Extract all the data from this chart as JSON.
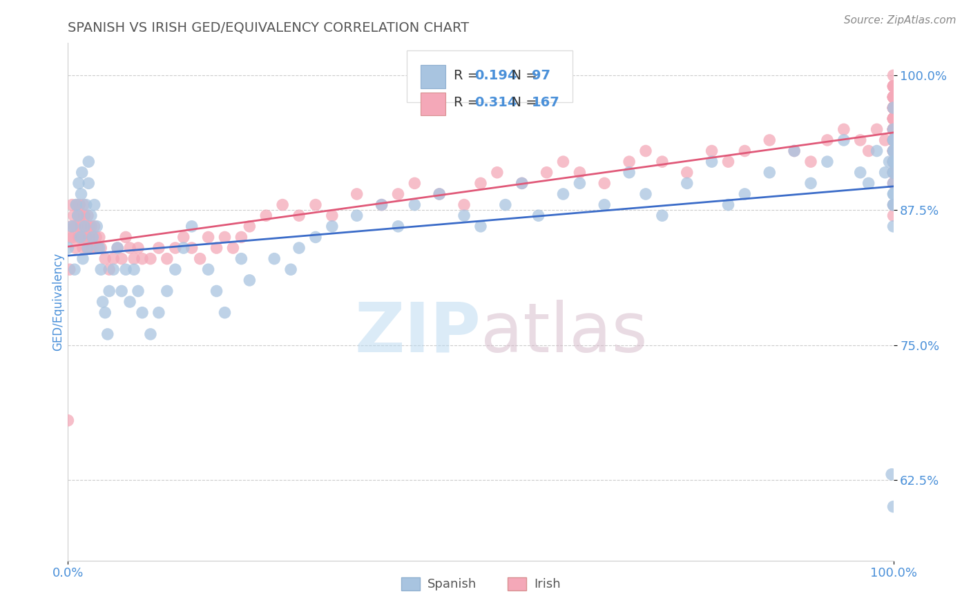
{
  "title": "SPANISH VS IRISH GED/EQUIVALENCY CORRELATION CHART",
  "source": "Source: ZipAtlas.com",
  "ylabel": "GED/Equivalency",
  "xlim": [
    0.0,
    1.0
  ],
  "ylim": [
    0.55,
    1.03
  ],
  "yticks": [
    0.625,
    0.75,
    0.875,
    1.0
  ],
  "ytick_labels": [
    "62.5%",
    "75.0%",
    "87.5%",
    "100.0%"
  ],
  "xtick_labels": [
    "0.0%",
    "100.0%"
  ],
  "spanish_R": 0.194,
  "spanish_N": 97,
  "irish_R": 0.314,
  "irish_N": 167,
  "spanish_color": "#a8c4e0",
  "irish_color": "#f4a8b8",
  "spanish_line_color": "#3a6bc8",
  "irish_line_color": "#e05878",
  "legend_label_spanish": "Spanish",
  "legend_label_irish": "Irish",
  "title_color": "#555555",
  "axis_label_color": "#4a90d9",
  "watermark_zip": "ZIP",
  "watermark_atlas": "atlas",
  "background_color": "#ffffff",
  "grid_color": "#cccccc",
  "spanish_x": [
    0.0,
    0.005,
    0.008,
    0.01,
    0.012,
    0.013,
    0.015,
    0.016,
    0.017,
    0.018,
    0.02,
    0.022,
    0.024,
    0.025,
    0.025,
    0.028,
    0.03,
    0.032,
    0.035,
    0.038,
    0.04,
    0.042,
    0.045,
    0.048,
    0.05,
    0.055,
    0.06,
    0.065,
    0.07,
    0.075,
    0.08,
    0.085,
    0.09,
    0.1,
    0.11,
    0.12,
    0.13,
    0.14,
    0.15,
    0.17,
    0.18,
    0.19,
    0.21,
    0.22,
    0.25,
    0.27,
    0.28,
    0.3,
    0.32,
    0.35,
    0.38,
    0.4,
    0.42,
    0.45,
    0.48,
    0.5,
    0.53,
    0.55,
    0.57,
    0.6,
    0.62,
    0.65,
    0.68,
    0.7,
    0.72,
    0.75,
    0.78,
    0.8,
    0.82,
    0.85,
    0.88,
    0.9,
    0.92,
    0.94,
    0.96,
    0.97,
    0.98,
    0.99,
    0.995,
    0.998,
    1.0,
    1.0,
    1.0,
    1.0,
    1.0,
    1.0,
    1.0,
    1.0,
    1.0,
    1.0,
    1.0,
    1.0,
    1.0,
    1.0,
    1.0,
    1.0,
    1.0
  ],
  "spanish_y": [
    0.84,
    0.86,
    0.82,
    0.88,
    0.87,
    0.9,
    0.85,
    0.89,
    0.91,
    0.83,
    0.86,
    0.88,
    0.84,
    0.9,
    0.92,
    0.87,
    0.85,
    0.88,
    0.86,
    0.84,
    0.82,
    0.79,
    0.78,
    0.76,
    0.8,
    0.82,
    0.84,
    0.8,
    0.82,
    0.79,
    0.82,
    0.8,
    0.78,
    0.76,
    0.78,
    0.8,
    0.82,
    0.84,
    0.86,
    0.82,
    0.8,
    0.78,
    0.83,
    0.81,
    0.83,
    0.82,
    0.84,
    0.85,
    0.86,
    0.87,
    0.88,
    0.86,
    0.88,
    0.89,
    0.87,
    0.86,
    0.88,
    0.9,
    0.87,
    0.89,
    0.9,
    0.88,
    0.91,
    0.89,
    0.87,
    0.9,
    0.92,
    0.88,
    0.89,
    0.91,
    0.93,
    0.9,
    0.92,
    0.94,
    0.91,
    0.9,
    0.93,
    0.91,
    0.92,
    0.63,
    0.92,
    0.88,
    0.9,
    0.86,
    0.94,
    0.91,
    0.93,
    0.89,
    0.95,
    0.92,
    0.94,
    0.88,
    0.97,
    0.91,
    0.89,
    0.93,
    0.6
  ],
  "irish_x": [
    0.0,
    0.002,
    0.003,
    0.004,
    0.005,
    0.006,
    0.007,
    0.008,
    0.009,
    0.01,
    0.011,
    0.012,
    0.013,
    0.014,
    0.015,
    0.016,
    0.017,
    0.018,
    0.019,
    0.02,
    0.021,
    0.022,
    0.023,
    0.024,
    0.025,
    0.026,
    0.027,
    0.028,
    0.029,
    0.03,
    0.032,
    0.034,
    0.036,
    0.038,
    0.04,
    0.045,
    0.05,
    0.055,
    0.06,
    0.065,
    0.07,
    0.075,
    0.08,
    0.085,
    0.09,
    0.1,
    0.11,
    0.12,
    0.13,
    0.14,
    0.15,
    0.16,
    0.17,
    0.18,
    0.19,
    0.2,
    0.21,
    0.22,
    0.24,
    0.26,
    0.28,
    0.3,
    0.32,
    0.35,
    0.38,
    0.4,
    0.42,
    0.45,
    0.48,
    0.5,
    0.52,
    0.55,
    0.58,
    0.6,
    0.62,
    0.65,
    0.68,
    0.7,
    0.72,
    0.75,
    0.78,
    0.8,
    0.82,
    0.85,
    0.88,
    0.9,
    0.92,
    0.94,
    0.96,
    0.97,
    0.98,
    0.99,
    1.0,
    1.0,
    1.0,
    1.0,
    1.0,
    1.0,
    1.0,
    1.0,
    1.0,
    1.0,
    1.0,
    1.0,
    1.0,
    1.0,
    1.0,
    1.0,
    1.0,
    1.0,
    1.0,
    1.0,
    1.0,
    1.0,
    1.0,
    1.0,
    1.0,
    1.0,
    1.0,
    1.0,
    1.0,
    1.0,
    1.0,
    1.0,
    1.0,
    1.0,
    1.0,
    1.0,
    1.0,
    1.0,
    1.0,
    1.0,
    1.0,
    1.0,
    1.0,
    1.0,
    1.0,
    1.0,
    1.0,
    1.0,
    1.0,
    1.0,
    1.0,
    1.0,
    1.0,
    1.0,
    1.0,
    1.0,
    1.0,
    1.0,
    1.0,
    1.0,
    1.0,
    1.0,
    1.0,
    1.0,
    1.0,
    1.0,
    1.0,
    1.0,
    1.0,
    1.0,
    1.0,
    1.0,
    1.0,
    1.0,
    1.0
  ],
  "irish_y": [
    0.68,
    0.82,
    0.85,
    0.86,
    0.88,
    0.85,
    0.87,
    0.86,
    0.84,
    0.88,
    0.86,
    0.87,
    0.85,
    0.88,
    0.87,
    0.86,
    0.85,
    0.84,
    0.88,
    0.87,
    0.86,
    0.85,
    0.84,
    0.87,
    0.86,
    0.85,
    0.84,
    0.86,
    0.85,
    0.84,
    0.86,
    0.85,
    0.84,
    0.85,
    0.84,
    0.83,
    0.82,
    0.83,
    0.84,
    0.83,
    0.85,
    0.84,
    0.83,
    0.84,
    0.83,
    0.83,
    0.84,
    0.83,
    0.84,
    0.85,
    0.84,
    0.83,
    0.85,
    0.84,
    0.85,
    0.84,
    0.85,
    0.86,
    0.87,
    0.88,
    0.87,
    0.88,
    0.87,
    0.89,
    0.88,
    0.89,
    0.9,
    0.89,
    0.88,
    0.9,
    0.91,
    0.9,
    0.91,
    0.92,
    0.91,
    0.9,
    0.92,
    0.93,
    0.92,
    0.91,
    0.93,
    0.92,
    0.93,
    0.94,
    0.93,
    0.92,
    0.94,
    0.95,
    0.94,
    0.93,
    0.95,
    0.94,
    0.95,
    0.9,
    0.91,
    0.92,
    0.93,
    0.94,
    0.91,
    0.92,
    0.93,
    0.94,
    0.95,
    0.9,
    0.88,
    0.87,
    0.91,
    0.92,
    0.96,
    0.97,
    0.98,
    0.94,
    0.91,
    0.93,
    0.95,
    0.92,
    0.94,
    0.96,
    0.97,
    0.98,
    0.95,
    0.99,
    1.0,
    0.97,
    0.96,
    0.94,
    0.98,
    0.95,
    0.93,
    0.97,
    0.96,
    0.98,
    0.94,
    0.97,
    0.99,
    0.95,
    0.96,
    0.93,
    0.91,
    0.97,
    0.95,
    0.98,
    0.96,
    0.94,
    0.92,
    0.97,
    0.99,
    0.95,
    0.98,
    0.96,
    0.93,
    0.91,
    0.97,
    0.99,
    0.94,
    0.96,
    0.98,
    0.92,
    0.95,
    0.97,
    0.99,
    0.93,
    0.91,
    0.96,
    0.98,
    0.94,
    0.92
  ]
}
